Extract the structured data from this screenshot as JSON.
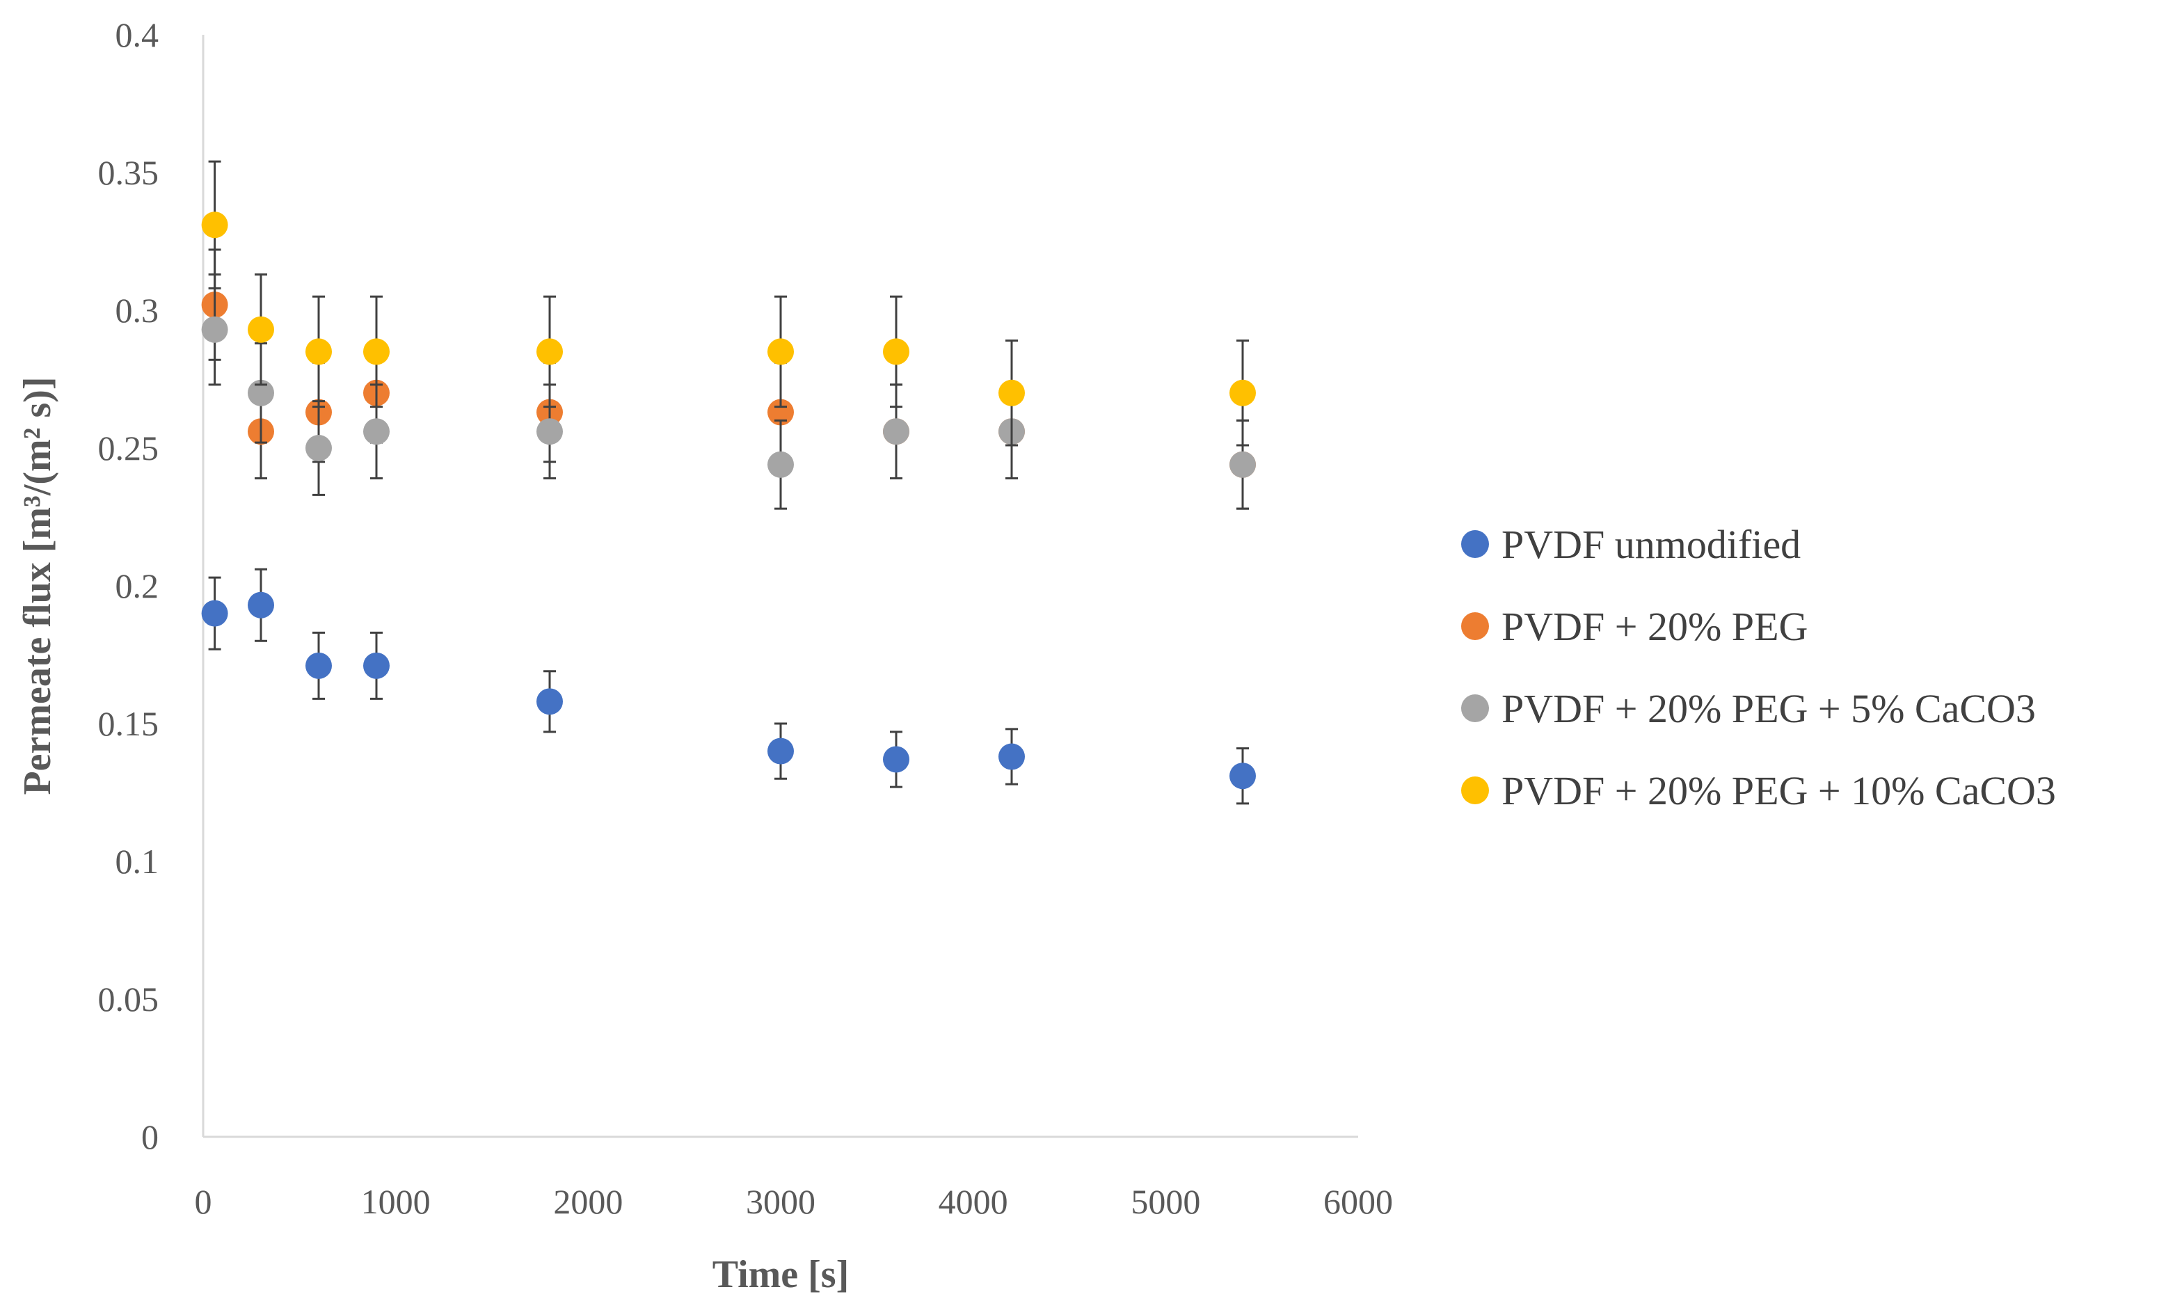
{
  "chart_data": {
    "type": "scatter",
    "title": "",
    "xlabel": "Time [s]",
    "ylabel": "Permeate flux [m³/(m² s)]",
    "xlim": [
      0,
      6000
    ],
    "ylim": [
      0,
      0.4
    ],
    "xticks": [
      0,
      1000,
      2000,
      3000,
      4000,
      5000,
      6000
    ],
    "yticks": [
      0,
      0.05,
      0.1,
      0.15,
      0.2,
      0.25,
      0.3,
      0.35,
      0.4
    ],
    "ytick_labels": [
      "0",
      "0.05",
      "0.1",
      "0.15",
      "0.2",
      "0.25",
      "0.3",
      "0.35",
      "0.4"
    ],
    "xtick_labels": [
      "0",
      "1000",
      "2000",
      "3000",
      "4000",
      "5000",
      "6000"
    ],
    "grid": false,
    "legend_position": "right",
    "error_bars": true,
    "x": [
      60,
      300,
      600,
      900,
      1800,
      3000,
      3600,
      4200,
      5400
    ],
    "series": [
      {
        "name": "PVDF unmodified",
        "color": "#4472C4",
        "values": [
          0.19,
          0.193,
          0.171,
          0.171,
          0.158,
          0.14,
          0.137,
          0.138,
          0.131
        ],
        "errors": [
          0.013,
          0.013,
          0.012,
          0.012,
          0.011,
          0.01,
          0.01,
          0.01,
          0.01
        ]
      },
      {
        "name": "PVDF + 20% PEG",
        "color": "#ED7D31",
        "values": [
          0.302,
          0.256,
          0.263,
          0.27,
          0.263,
          0.263,
          0.256,
          0.256,
          0.244
        ],
        "errors": [
          0.02,
          0.017,
          0.018,
          0.018,
          0.018,
          0.018,
          0.017,
          0.017,
          0.016
        ]
      },
      {
        "name": "PVDF + 20% PEG + 5% CaCO3",
        "color": "#A5A5A5",
        "values": [
          0.293,
          0.27,
          0.25,
          0.256,
          0.256,
          0.244,
          0.256,
          0.256,
          0.244
        ],
        "errors": [
          0.02,
          0.018,
          0.017,
          0.017,
          0.017,
          0.016,
          0.017,
          0.017,
          0.016
        ]
      },
      {
        "name": "PVDF + 20% PEG + 10% CaCO3",
        "color": "#FFC000",
        "values": [
          0.331,
          0.293,
          0.285,
          0.285,
          0.285,
          0.285,
          0.285,
          0.27,
          0.27
        ],
        "errors": [
          0.023,
          0.02,
          0.02,
          0.02,
          0.02,
          0.02,
          0.02,
          0.019,
          0.019
        ]
      }
    ]
  }
}
